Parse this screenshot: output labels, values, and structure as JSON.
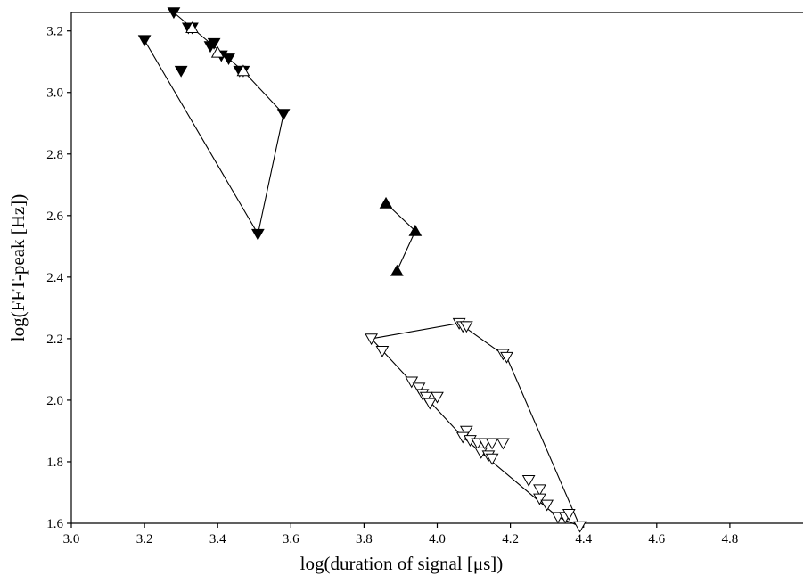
{
  "chart_data": {
    "type": "scatter",
    "title": "",
    "xlabel": "log(duration of signal [μs])",
    "ylabel": "log(FFT-peak [Hz])",
    "xlim": [
      3.0,
      5.0
    ],
    "ylim": [
      1.6,
      3.26
    ],
    "xticks": [
      "3.0",
      "3.2",
      "3.4",
      "3.6",
      "3.8",
      "4.0",
      "4.2",
      "4.4",
      "4.6",
      "4.8"
    ],
    "yticks": [
      "1.6",
      "1.8",
      "2.0",
      "2.2",
      "2.4",
      "2.6",
      "2.8",
      "3.0",
      "3.2"
    ],
    "grid": false,
    "legend": "none",
    "series": [
      {
        "marker": "filled-down-triangle",
        "points": [
          [
            3.28,
            3.26
          ],
          [
            3.2,
            3.17
          ],
          [
            3.3,
            3.07
          ],
          [
            3.32,
            3.21
          ],
          [
            3.33,
            3.21
          ],
          [
            3.38,
            3.15
          ],
          [
            3.39,
            3.16
          ],
          [
            3.41,
            3.12
          ],
          [
            3.43,
            3.11
          ],
          [
            3.46,
            3.07
          ],
          [
            3.47,
            3.07
          ],
          [
            3.58,
            2.93
          ],
          [
            3.51,
            2.54
          ]
        ],
        "hull": [
          [
            3.28,
            3.26
          ],
          [
            3.47,
            3.07
          ],
          [
            3.58,
            2.93
          ],
          [
            3.51,
            2.54
          ],
          [
            3.2,
            3.17
          ]
        ]
      },
      {
        "marker": "open-up-triangle",
        "points": [
          [
            3.33,
            3.21
          ],
          [
            3.4,
            3.13
          ],
          [
            3.47,
            3.07
          ]
        ]
      },
      {
        "marker": "filled-up-triangle",
        "points": [
          [
            3.86,
            2.64
          ],
          [
            3.94,
            2.55
          ],
          [
            3.89,
            2.42
          ]
        ],
        "hull": [
          [
            3.86,
            2.64
          ],
          [
            3.94,
            2.55
          ],
          [
            3.89,
            2.42
          ]
        ]
      },
      {
        "marker": "open-down-triangle",
        "points": [
          [
            3.82,
            2.2
          ],
          [
            3.85,
            2.16
          ],
          [
            4.06,
            2.25
          ],
          [
            4.07,
            2.24
          ],
          [
            4.08,
            2.24
          ],
          [
            4.18,
            2.15
          ],
          [
            4.19,
            2.14
          ],
          [
            3.93,
            2.06
          ],
          [
            3.95,
            2.04
          ],
          [
            3.96,
            2.02
          ],
          [
            3.97,
            2.01
          ],
          [
            3.98,
            1.99
          ],
          [
            4.0,
            2.01
          ],
          [
            4.08,
            1.9
          ],
          [
            4.07,
            1.88
          ],
          [
            4.09,
            1.87
          ],
          [
            4.11,
            1.86
          ],
          [
            4.12,
            1.83
          ],
          [
            4.14,
            1.82
          ],
          [
            4.15,
            1.81
          ],
          [
            4.13,
            1.86
          ],
          [
            4.15,
            1.86
          ],
          [
            4.18,
            1.86
          ],
          [
            4.25,
            1.74
          ],
          [
            4.28,
            1.71
          ],
          [
            4.28,
            1.68
          ],
          [
            4.3,
            1.66
          ],
          [
            4.33,
            1.62
          ],
          [
            4.35,
            1.62
          ],
          [
            4.36,
            1.63
          ],
          [
            4.39,
            1.59
          ]
        ],
        "hull": [
          [
            3.82,
            2.2
          ],
          [
            4.06,
            2.25
          ],
          [
            4.19,
            2.14
          ],
          [
            4.39,
            1.59
          ],
          [
            4.33,
            1.62
          ],
          [
            4.07,
            1.88
          ],
          [
            3.82,
            2.2
          ]
        ]
      }
    ]
  }
}
